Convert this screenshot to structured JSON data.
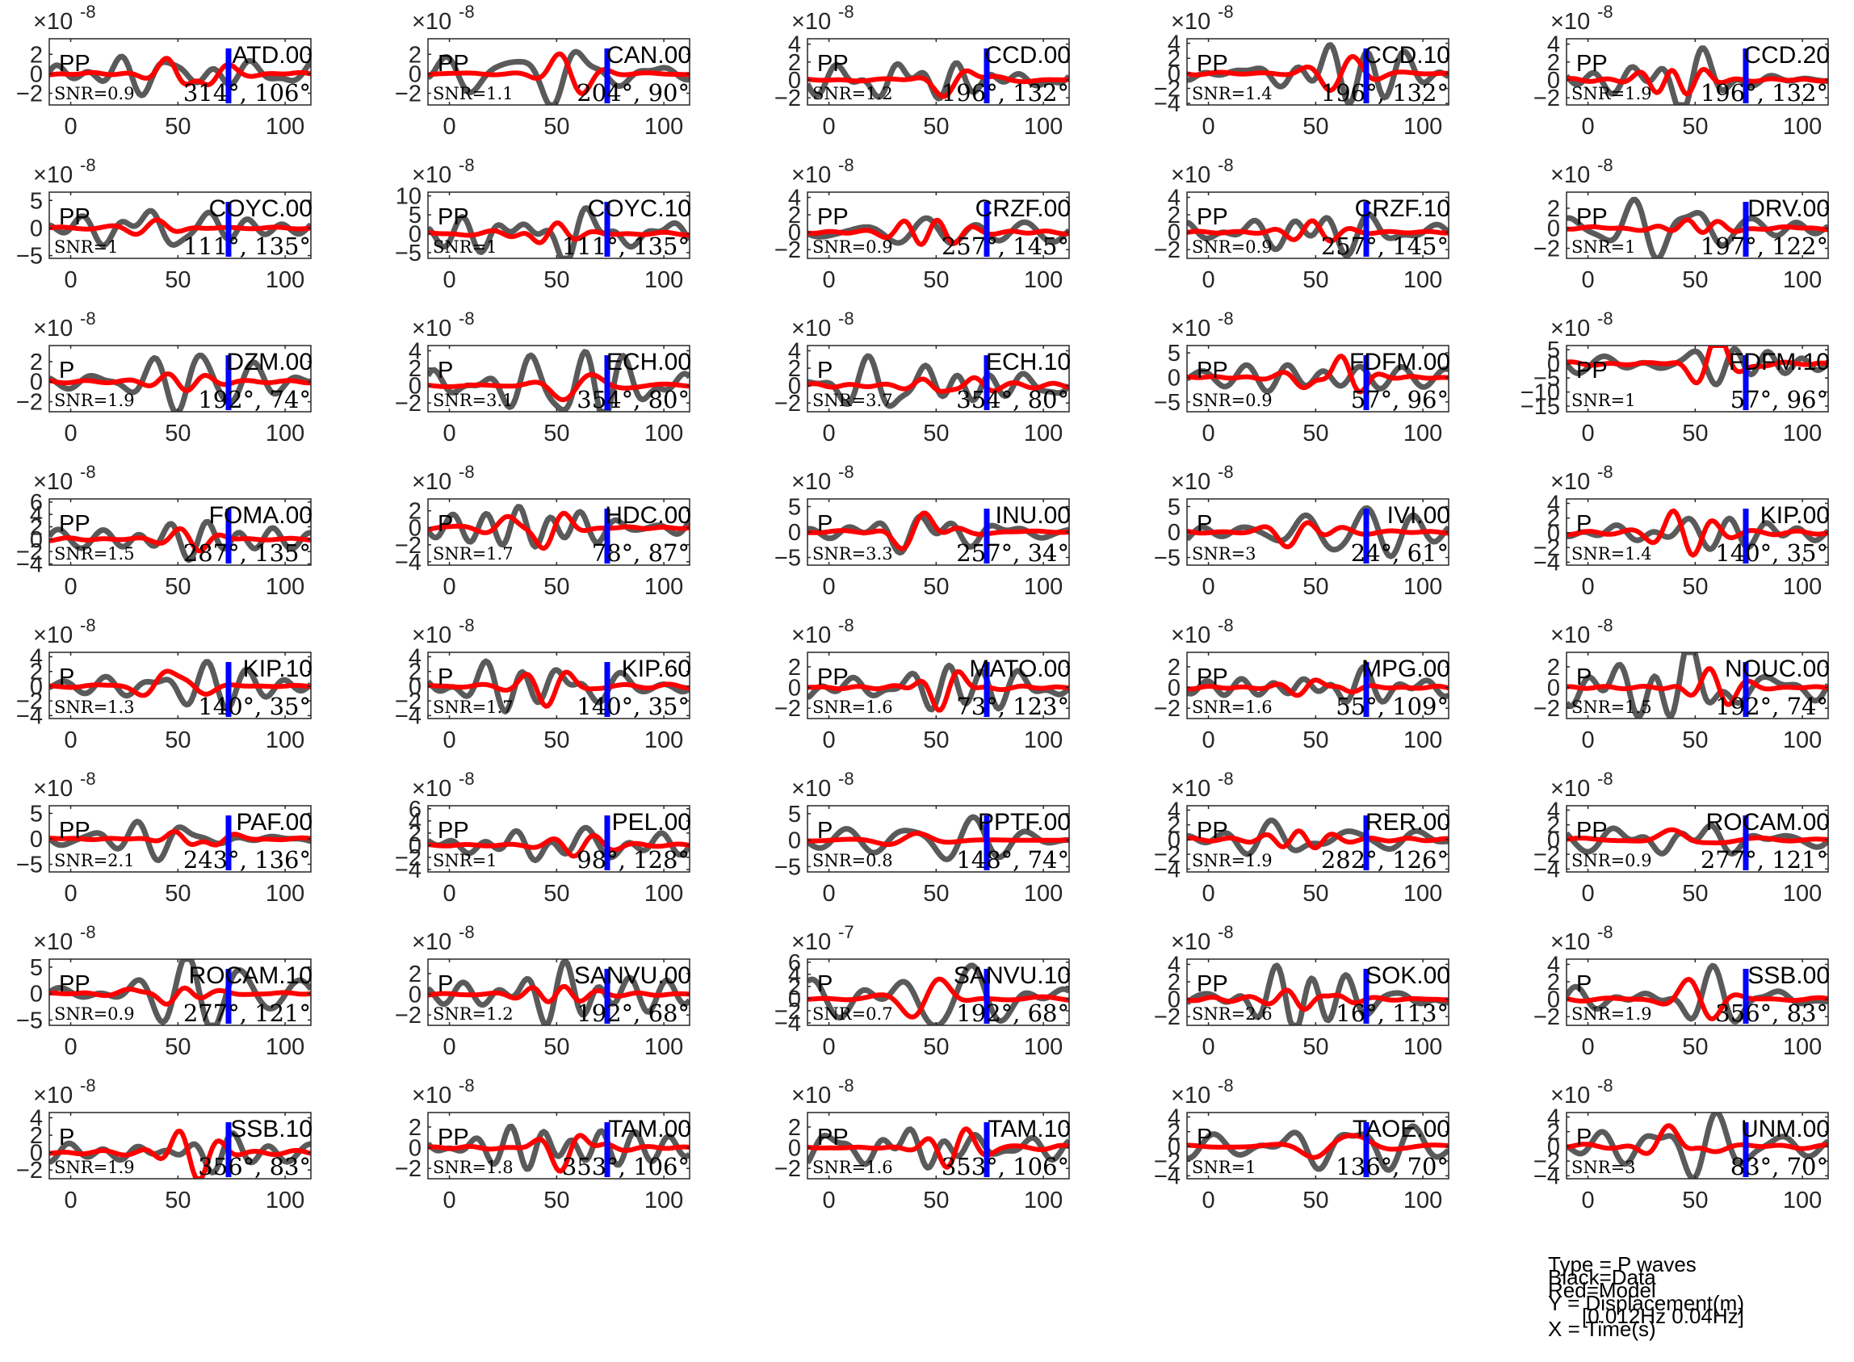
{
  "chart_data": {
    "type": "line",
    "series_styles": {
      "data": {
        "color": "#5a5a5a"
      },
      "model": {
        "color": "#ff0000"
      },
      "pick_marker": {
        "color": "#0000ff"
      }
    },
    "x_ticks": [
      0,
      50,
      100
    ],
    "xlim": [
      -10,
      112
    ],
    "panels": [
      {
        "station": "ATD.00",
        "phase": "PP",
        "snr": "SNR=0.9",
        "az": "314°, 106°",
        "exp": "-8",
        "yticks": [
          -2,
          0,
          2
        ],
        "ylim": [
          -3.2,
          3.6
        ],
        "amp": 2.6,
        "seed": 1
      },
      {
        "station": "CAN.00",
        "phase": "PP",
        "snr": "SNR=1.1",
        "az": "204°, 90°",
        "exp": "-8",
        "yticks": [
          -2,
          0,
          2
        ],
        "ylim": [
          -3.2,
          3.6
        ],
        "amp": 2.4,
        "seed": 2
      },
      {
        "station": "CCD.00",
        "phase": "PP",
        "snr": "SNR=1.2",
        "az": "196°, 132°",
        "exp": "-8",
        "yticks": [
          -2,
          0,
          2,
          4
        ],
        "ylim": [
          -2.8,
          4.6
        ],
        "amp": 2.6,
        "seed": 3
      },
      {
        "station": "CCD.10",
        "phase": "PP",
        "snr": "SNR=1.4",
        "az": "196°, 132°",
        "exp": "-8",
        "yticks": [
          -4,
          -2,
          0,
          2,
          4
        ],
        "ylim": [
          -4.2,
          4.6
        ],
        "amp": 3.0,
        "seed": 4
      },
      {
        "station": "CCD.20",
        "phase": "PP",
        "snr": "SNR=1.9",
        "az": "196°, 132°",
        "exp": "-8",
        "yticks": [
          -2,
          0,
          2,
          4
        ],
        "ylim": [
          -2.8,
          4.6
        ],
        "amp": 2.8,
        "seed": 5
      },
      {
        "station": "COYC.00",
        "phase": "PP",
        "snr": "SNR=1",
        "az": "111°, 135°",
        "exp": "-8",
        "yticks": [
          -5,
          0,
          5
        ],
        "ylim": [
          -5.5,
          6.5
        ],
        "amp": 3.2,
        "seed": 6
      },
      {
        "station": "COYC.10",
        "phase": "PP",
        "snr": "SNR=1",
        "az": "111°, 135°",
        "exp": "-8",
        "yticks": [
          -5,
          0,
          5,
          10
        ],
        "ylim": [
          -6.5,
          11
        ],
        "amp": 6,
        "seed": 7
      },
      {
        "station": "CRZF.00",
        "phase": "PP",
        "snr": "SNR=0.9",
        "az": "257°, 145°",
        "exp": "-8",
        "yticks": [
          -2,
          0,
          2,
          4
        ],
        "ylim": [
          -3,
          4.6
        ],
        "amp": 2.4,
        "seed": 8
      },
      {
        "station": "CRZF.10",
        "phase": "PP",
        "snr": "SNR=0.9",
        "az": "257°, 145°",
        "exp": "-8",
        "yticks": [
          -2,
          0,
          2,
          4
        ],
        "ylim": [
          -3,
          4.6
        ],
        "amp": 2.4,
        "seed": 9
      },
      {
        "station": "DRV.00",
        "phase": "PP",
        "snr": "SNR=1",
        "az": "197°, 122°",
        "exp": "-8",
        "yticks": [
          -2,
          0,
          2
        ],
        "ylim": [
          -3,
          3.6
        ],
        "amp": 2.2,
        "seed": 10
      },
      {
        "station": "DZM.00",
        "phase": "P",
        "snr": "SNR=1.9",
        "az": "192°, 74°",
        "exp": "-8",
        "yticks": [
          -2,
          0,
          2
        ],
        "ylim": [
          -3,
          3.6
        ],
        "amp": 2.6,
        "seed": 11
      },
      {
        "station": "ECH.00",
        "phase": "P",
        "snr": "SNR=3.1",
        "az": "354°, 80°",
        "exp": "-8",
        "yticks": [
          -2,
          0,
          2,
          4
        ],
        "ylim": [
          -3,
          4.6
        ],
        "amp": 3.0,
        "seed": 12
      },
      {
        "station": "ECH.10",
        "phase": "P",
        "snr": "SNR=3.7",
        "az": "354°, 80°",
        "exp": "-8",
        "yticks": [
          -2,
          0,
          2,
          4
        ],
        "ylim": [
          -3,
          4.6
        ],
        "amp": 3.0,
        "seed": 13
      },
      {
        "station": "FDFM.00",
        "phase": "PP",
        "snr": "SNR=0.9",
        "az": "57°, 96°",
        "exp": "-8",
        "yticks": [
          -5,
          0,
          5
        ],
        "ylim": [
          -7,
          6.5
        ],
        "amp": 4.5,
        "seed": 14
      },
      {
        "station": "FDFM.10",
        "phase": "PP",
        "snr": "SNR=1",
        "az": "57°, 96°",
        "exp": "-8",
        "yticks": [
          -15,
          -10,
          -5,
          0,
          5
        ],
        "ylim": [
          -17,
          6.5
        ],
        "amp": 9,
        "seed": 15
      },
      {
        "station": "FOMA.00",
        "phase": "PP",
        "snr": "SNR=1.5",
        "az": "287°, 135°",
        "exp": "-8",
        "yticks": [
          -4,
          -2,
          0,
          2,
          4,
          6
        ],
        "ylim": [
          -4.2,
          6.5
        ],
        "amp": 3.2,
        "seed": 16
      },
      {
        "station": "HDC.00",
        "phase": "P",
        "snr": "SNR=1.7",
        "az": "78°, 87°",
        "exp": "-8",
        "yticks": [
          -4,
          -2,
          0,
          2
        ],
        "ylim": [
          -4.4,
          3.4
        ],
        "amp": 3.2,
        "seed": 17
      },
      {
        "station": "INU.00",
        "phase": "P",
        "snr": "SNR=3.3",
        "az": "257°, 34°",
        "exp": "-8",
        "yticks": [
          -5,
          0,
          5
        ],
        "ylim": [
          -6.5,
          6.5
        ],
        "amp": 4.5,
        "seed": 18
      },
      {
        "station": "IVI.00",
        "phase": "P",
        "snr": "SNR=3",
        "az": "24°, 61°",
        "exp": "-8",
        "yticks": [
          -5,
          0,
          5
        ],
        "ylim": [
          -6.5,
          6.5
        ],
        "amp": 4.5,
        "seed": 19
      },
      {
        "station": "KIP.00",
        "phase": "P",
        "snr": "SNR=1.4",
        "az": "140°, 35°",
        "exp": "-8",
        "yticks": [
          -4,
          -2,
          0,
          2,
          4
        ],
        "ylim": [
          -4.4,
          4.6
        ],
        "amp": 3.4,
        "seed": 20
      },
      {
        "station": "KIP.10",
        "phase": "P",
        "snr": "SNR=1.3",
        "az": "140°, 35°",
        "exp": "-8",
        "yticks": [
          -4,
          -2,
          0,
          2,
          4
        ],
        "ylim": [
          -4.4,
          4.6
        ],
        "amp": 3.4,
        "seed": 21
      },
      {
        "station": "KIP.60",
        "phase": "P",
        "snr": "SNR=1.7",
        "az": "140°, 35°",
        "exp": "-8",
        "yticks": [
          -4,
          -2,
          0,
          2,
          4
        ],
        "ylim": [
          -4.4,
          4.6
        ],
        "amp": 3.4,
        "seed": 22
      },
      {
        "station": "MATO.00",
        "phase": "PP",
        "snr": "SNR=1.6",
        "az": "73°, 123°",
        "exp": "-8",
        "yticks": [
          -2,
          0,
          2
        ],
        "ylim": [
          -3,
          3.4
        ],
        "amp": 2.6,
        "seed": 23
      },
      {
        "station": "MPG.00",
        "phase": "PP",
        "snr": "SNR=1.6",
        "az": "55°, 109°",
        "exp": "-8",
        "yticks": [
          -2,
          0,
          2
        ],
        "ylim": [
          -3,
          3.4
        ],
        "amp": 2.6,
        "seed": 24
      },
      {
        "station": "NOUC.00",
        "phase": "P",
        "snr": "SNR=1.5",
        "az": "192°, 74°",
        "exp": "-8",
        "yticks": [
          -2,
          0,
          2
        ],
        "ylim": [
          -3,
          3.4
        ],
        "amp": 2.4,
        "seed": 25
      },
      {
        "station": "PAF.00",
        "phase": "PP",
        "snr": "SNR=2.1",
        "az": "243°, 136°",
        "exp": "-8",
        "yticks": [
          -5,
          0,
          5
        ],
        "ylim": [
          -6.5,
          6.5
        ],
        "amp": 4.0,
        "seed": 26
      },
      {
        "station": "PEL.00",
        "phase": "PP",
        "snr": "SNR=1",
        "az": "98°, 128°",
        "exp": "-8",
        "yticks": [
          -4,
          -2,
          0,
          2,
          4,
          6
        ],
        "ylim": [
          -4.4,
          6.5
        ],
        "amp": 3.2,
        "seed": 27
      },
      {
        "station": "PPTF.00",
        "phase": "P",
        "snr": "SNR=0.8",
        "az": "148°, 74°",
        "exp": "-8",
        "yticks": [
          -5,
          0,
          5
        ],
        "ylim": [
          -6,
          6.5
        ],
        "amp": 4.2,
        "seed": 28
      },
      {
        "station": "RER.00",
        "phase": "PP",
        "snr": "SNR=1.9",
        "az": "282°, 126°",
        "exp": "-8",
        "yticks": [
          -4,
          -2,
          0,
          2,
          4
        ],
        "ylim": [
          -4.4,
          4.6
        ],
        "amp": 3.0,
        "seed": 29
      },
      {
        "station": "ROCAM.00",
        "phase": "PP",
        "snr": "SNR=0.9",
        "az": "277°, 121°",
        "exp": "-8",
        "yticks": [
          -4,
          -2,
          0,
          2,
          4
        ],
        "ylim": [
          -4.4,
          4.6
        ],
        "amp": 3.0,
        "seed": 30
      },
      {
        "station": "ROCAM.10",
        "phase": "PP",
        "snr": "SNR=0.9",
        "az": "277°, 121°",
        "exp": "-8",
        "yticks": [
          -5,
          0,
          5
        ],
        "ylim": [
          -6,
          6.5
        ],
        "amp": 4.2,
        "seed": 31
      },
      {
        "station": "SANVU.00",
        "phase": "P",
        "snr": "SNR=1.2",
        "az": "192°, 68°",
        "exp": "-8",
        "yticks": [
          -2,
          0,
          2
        ],
        "ylim": [
          -3,
          3.4
        ],
        "amp": 2.6,
        "seed": 32
      },
      {
        "station": "SANVU.10",
        "phase": "P",
        "snr": "SNR=0.7",
        "az": "192°, 68°",
        "exp": "-7",
        "yticks": [
          -4,
          -2,
          0,
          2,
          4,
          6
        ],
        "ylim": [
          -4.4,
          6.5
        ],
        "amp": 4.5,
        "seed": 33
      },
      {
        "station": "SOK.00",
        "phase": "PP",
        "snr": "SNR=2.6",
        "az": "16°, 113°",
        "exp": "-8",
        "yticks": [
          -2,
          0,
          2,
          4
        ],
        "ylim": [
          -3,
          4.6
        ],
        "amp": 3.0,
        "seed": 34
      },
      {
        "station": "SSB.00",
        "phase": "P",
        "snr": "SNR=1.9",
        "az": "356°, 83°",
        "exp": "-8",
        "yticks": [
          -2,
          0,
          2,
          4
        ],
        "ylim": [
          -3,
          4.6
        ],
        "amp": 3.0,
        "seed": 35
      },
      {
        "station": "SSB.10",
        "phase": "P",
        "snr": "SNR=1.9",
        "az": "356°, 83°",
        "exp": "-8",
        "yticks": [
          -2,
          0,
          2,
          4
        ],
        "ylim": [
          -3,
          4.6
        ],
        "amp": 3.0,
        "seed": 36
      },
      {
        "station": "TAM.00",
        "phase": "PP",
        "snr": "SNR=1.8",
        "az": "353°, 106°",
        "exp": "-8",
        "yticks": [
          -2,
          0,
          2
        ],
        "ylim": [
          -3,
          3.4
        ],
        "amp": 2.6,
        "seed": 37
      },
      {
        "station": "TAM.10",
        "phase": "PP",
        "snr": "SNR=1.6",
        "az": "353°, 106°",
        "exp": "-8",
        "yticks": [
          -2,
          0,
          2
        ],
        "ylim": [
          -3,
          3.4
        ],
        "amp": 2.6,
        "seed": 38
      },
      {
        "station": "TAOE.00",
        "phase": "P",
        "snr": "SNR=1",
        "az": "136°, 70°",
        "exp": "-8",
        "yticks": [
          -4,
          -2,
          0,
          2,
          4
        ],
        "ylim": [
          -4.4,
          4.6
        ],
        "amp": 3.0,
        "seed": 39
      },
      {
        "station": "UNM.00",
        "phase": "P",
        "snr": "SNR=3",
        "az": "83°, 70°",
        "exp": "-8",
        "yticks": [
          -4,
          -2,
          0,
          2,
          4
        ],
        "ylim": [
          -4.4,
          4.6
        ],
        "amp": 3.4,
        "seed": 40
      }
    ]
  },
  "legend": {
    "type_line": "Type = P waves",
    "black_line": "Black=Data",
    "red_line": "Red=Model",
    "y_line": "Y = Displacement(m)",
    "band_line": "[0.012Hz 0.04Hz]",
    "x_line": "X = Time(s)"
  }
}
